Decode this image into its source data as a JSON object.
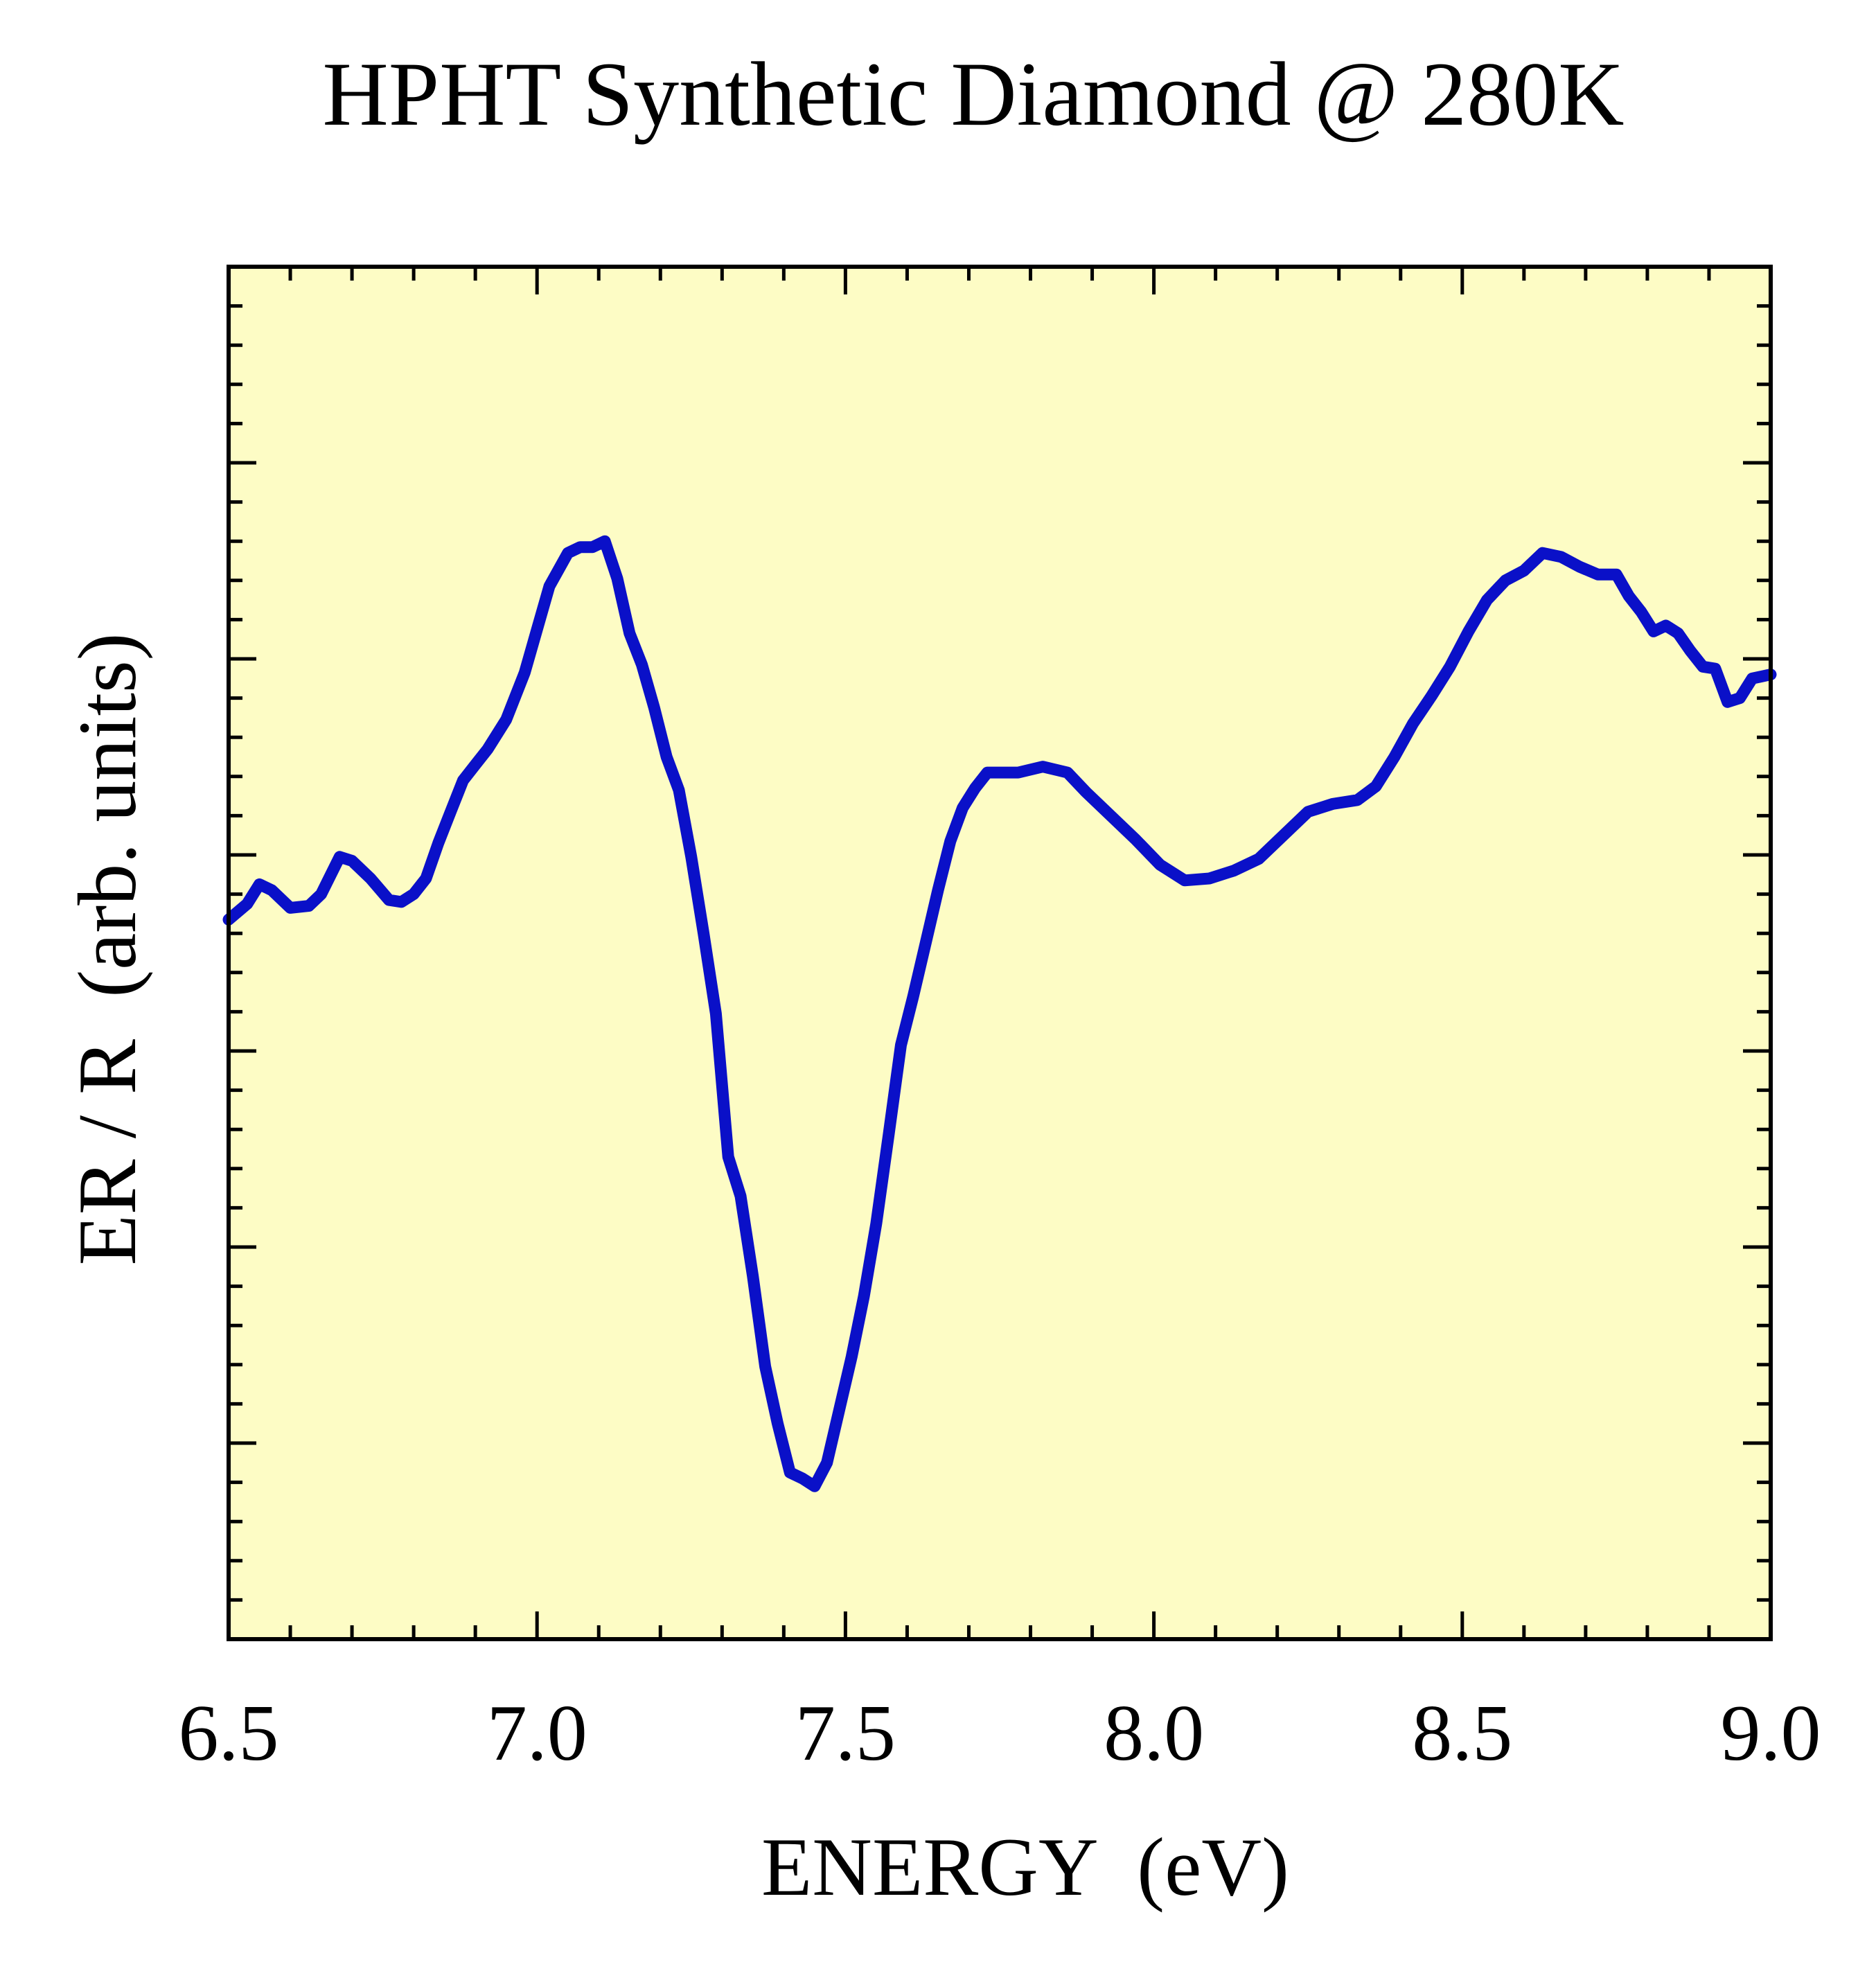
{
  "colors": {
    "plot_background": "#fdfcc5",
    "series": "#0a10c8",
    "frame": "#000000"
  },
  "chart_data": {
    "type": "line",
    "title": "HPHT Synthetic Diamond @ 280K",
    "xlabel": "ENERGY  (eV)",
    "ylabel": "ER / R  (arb. units)",
    "xlim": [
      6.5,
      9.0
    ],
    "ylim": [
      0,
      7
    ],
    "x_ticks": [
      "6.5",
      "7.0",
      "7.5",
      "8.0",
      "8.5",
      "9.0"
    ],
    "grid": false,
    "legend": "none",
    "series": [
      {
        "x": [
          6.5,
          6.53,
          6.55,
          6.57,
          6.6,
          6.63,
          6.65,
          6.68,
          6.7,
          6.73,
          6.76,
          6.78,
          6.8,
          6.82,
          6.84,
          6.86,
          6.88,
          6.9,
          6.92,
          6.95,
          6.98,
          7.0,
          7.02,
          7.05,
          7.07,
          7.09,
          7.11,
          7.13,
          7.15,
          7.17,
          7.19,
          7.21,
          7.23,
          7.25,
          7.27,
          7.29,
          7.31,
          7.33,
          7.35,
          7.37,
          7.39,
          7.41,
          7.43,
          7.45,
          7.47,
          7.49,
          7.51,
          7.53,
          7.55,
          7.57,
          7.59,
          7.61,
          7.63,
          7.65,
          7.67,
          7.69,
          7.71,
          7.73,
          7.75,
          7.78,
          7.82,
          7.86,
          7.89,
          7.93,
          7.97,
          8.01,
          8.05,
          8.09,
          8.13,
          8.17,
          8.21,
          8.25,
          8.29,
          8.33,
          8.36,
          8.39,
          8.42,
          8.45,
          8.48,
          8.51,
          8.54,
          8.57,
          8.6,
          8.63,
          8.66,
          8.69,
          8.72,
          8.75,
          8.77,
          8.79,
          8.81,
          8.83,
          8.85,
          8.87,
          8.89,
          8.91,
          8.93,
          8.95,
          8.97,
          9.0
        ],
        "y": [
          3.67,
          3.75,
          3.85,
          3.82,
          3.73,
          3.74,
          3.8,
          3.99,
          3.97,
          3.88,
          3.77,
          3.76,
          3.8,
          3.88,
          4.06,
          4.22,
          4.38,
          4.46,
          4.54,
          4.69,
          4.93,
          5.15,
          5.37,
          5.54,
          5.57,
          5.57,
          5.6,
          5.41,
          5.13,
          4.97,
          4.75,
          4.5,
          4.33,
          3.99,
          3.6,
          3.19,
          2.46,
          2.26,
          1.85,
          1.39,
          1.1,
          0.85,
          0.82,
          0.78,
          0.9,
          1.17,
          1.44,
          1.75,
          2.12,
          2.57,
          3.03,
          3.28,
          3.55,
          3.82,
          4.07,
          4.24,
          4.34,
          4.42,
          4.42,
          4.42,
          4.45,
          4.42,
          4.32,
          4.2,
          4.08,
          3.95,
          3.87,
          3.88,
          3.92,
          3.98,
          4.1,
          4.22,
          4.26,
          4.28,
          4.35,
          4.5,
          4.67,
          4.81,
          4.96,
          5.14,
          5.3,
          5.4,
          5.45,
          5.54,
          5.52,
          5.47,
          5.43,
          5.43,
          5.32,
          5.24,
          5.14,
          5.17,
          5.13,
          5.04,
          4.96,
          4.95,
          4.78,
          4.8,
          4.9,
          4.92
        ]
      }
    ]
  }
}
